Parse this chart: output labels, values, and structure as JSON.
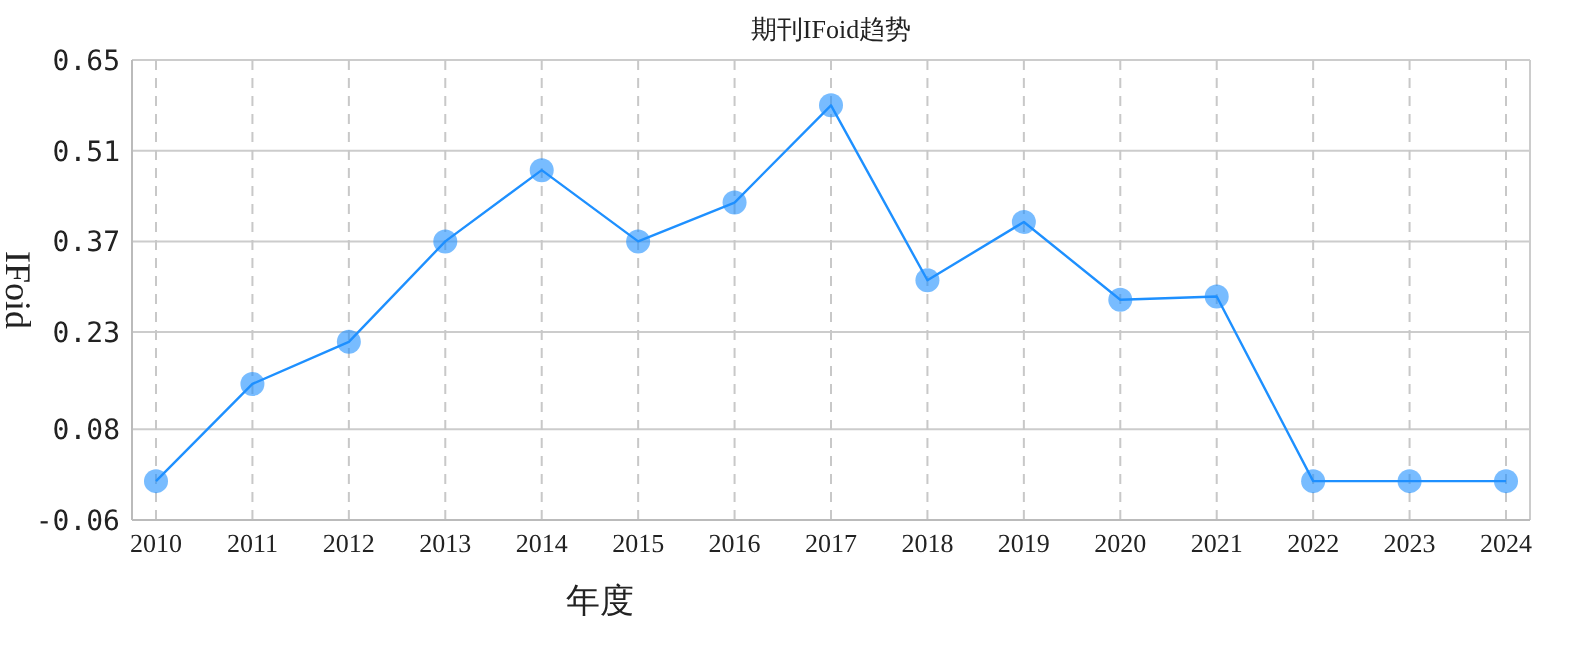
{
  "chart_data": {
    "type": "line",
    "title": "期刊IFoid趋势",
    "xlabel": "年度",
    "ylabel": "IFoid",
    "categories": [
      "2010",
      "2011",
      "2012",
      "2013",
      "2014",
      "2015",
      "2016",
      "2017",
      "2018",
      "2019",
      "2020",
      "2021",
      "2022",
      "2023",
      "2024"
    ],
    "series": [
      {
        "color": "#1e90ff",
        "values": [
          0,
          0.15,
          0.215,
          0.37,
          0.48,
          0.37,
          0.43,
          0.58,
          0.31,
          0.4,
          0.28,
          0.285,
          0,
          0,
          0
        ]
      }
    ],
    "ylim": [
      -0.06,
      0.65
    ],
    "yticks": [
      {
        "value": -0.06,
        "label": "-0.06"
      },
      0.08,
      0.23,
      0.37,
      0.51,
      0.65
    ],
    "grid": true,
    "marker": "circle",
    "line_style": "solid"
  }
}
